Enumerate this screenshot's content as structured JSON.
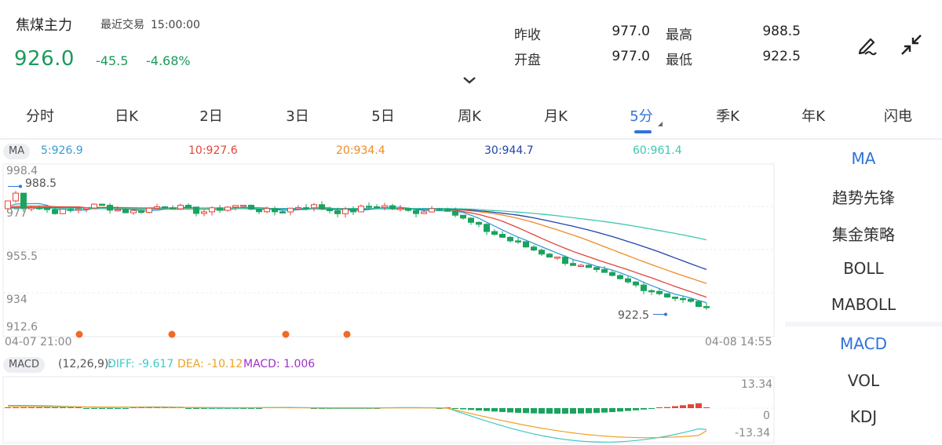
{
  "header": {
    "title": "焦煤主力",
    "last_trade_label": "最近交易",
    "last_trade_time": "15:00:00",
    "price": "926.0",
    "change": "-45.5",
    "change_pct": "-4.68%",
    "stats": {
      "prev_close_label": "昨收",
      "prev_close": "977.0",
      "high_label": "最高",
      "high": "988.5",
      "open_label": "开盘",
      "open": "977.0",
      "low_label": "最低",
      "low": "922.5"
    },
    "icons": {
      "draw": "pen-draw-icon",
      "shrink": "collapse-arrows-icon",
      "expand": "chevron-down-icon"
    }
  },
  "tabs": [
    "分时",
    "日K",
    "2日",
    "3日",
    "5日",
    "周K",
    "月K",
    "5分",
    "季K",
    "年K",
    "闪电"
  ],
  "active_tab": "5分",
  "ma": {
    "tag": "MA",
    "items": [
      {
        "label": "5:926.9",
        "color": "#3a9bd5"
      },
      {
        "label": "10:927.6",
        "color": "#e0463a"
      },
      {
        "label": "20:934.4",
        "color": "#f08a24"
      },
      {
        "label": "30:944.7",
        "color": "#2244aa"
      },
      {
        "label": "60:961.4",
        "color": "#3ec9b0"
      }
    ]
  },
  "macd": {
    "tag": "MACD",
    "params": "(12,26,9):",
    "items": [
      {
        "label": "DIFF: -9.617",
        "color": "#3ec9c9"
      },
      {
        "label": "DEA: -10.12",
        "color": "#f0a020"
      },
      {
        "label": "MACD: 1.006",
        "color": "#a030c8"
      }
    ],
    "axis": [
      "13.34",
      "0",
      "-13.34"
    ]
  },
  "chart_axis": {
    "y_labels": [
      "998.4",
      "988.5",
      "977",
      "955.5",
      "934",
      "912.6"
    ],
    "low_marker": "922.5",
    "time_start": "04-07 21:00",
    "time_end": "04-08 14:55"
  },
  "right_panel": {
    "main": [
      "MA",
      "趋势先锋",
      "集金策略",
      "BOLL",
      "MABOLL"
    ],
    "sub": [
      "MACD",
      "VOL",
      "KDJ"
    ]
  },
  "colors": {
    "up": "#e0463a",
    "down": "#1aa35f",
    "accent": "#2f73d9"
  },
  "chart_data": {
    "type": "candlestick",
    "interval": "5分",
    "ylim": [
      912.6,
      998.4
    ],
    "summary": {
      "open": 977.0,
      "high": 988.5,
      "low": 922.5,
      "close": 926.0
    },
    "ma": {
      "MA5": 926.9,
      "MA10": 927.6,
      "MA20": 934.4,
      "MA30": 944.7,
      "MA60": 961.4
    },
    "macd": {
      "DIFF": -9.617,
      "DEA": -10.12,
      "MACD": 1.006,
      "ylim": [
        -13.34,
        13.34
      ]
    }
  }
}
